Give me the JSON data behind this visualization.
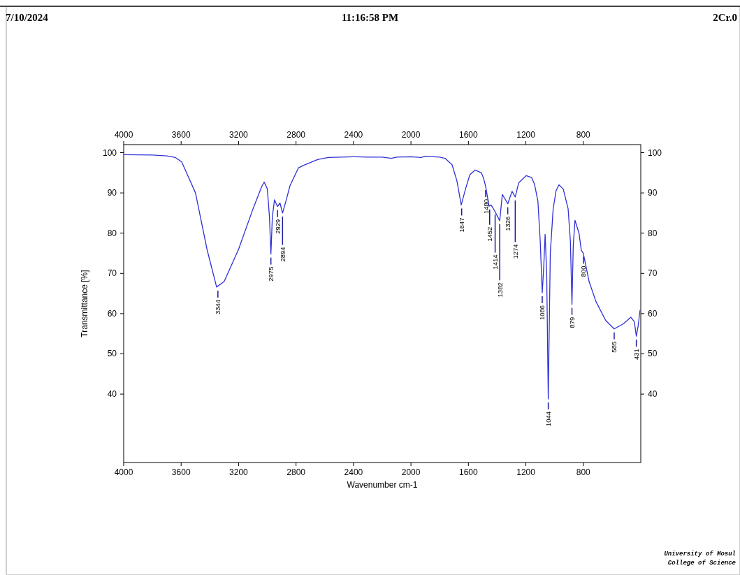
{
  "chart_data": {
    "type": "line",
    "xlabel": "Wavenumber cm-1",
    "ylabel": "Transmittance [%]",
    "xlim": [
      4000,
      400
    ],
    "xticks": [
      4000,
      3600,
      3200,
      2800,
      2400,
      2000,
      1600,
      1200,
      800
    ],
    "x2lim": [
      4000,
      400
    ],
    "x2ticks": [
      4000,
      3600,
      3200,
      2800,
      2400,
      2000,
      1600,
      1200,
      800
    ],
    "ylim": [
      23,
      102
    ],
    "yticks": [
      40,
      50,
      60,
      70,
      80,
      90,
      100
    ],
    "y2lim": [
      23,
      102
    ],
    "y2ticks": [
      40,
      50,
      60,
      70,
      80,
      90,
      100
    ],
    "grid": false,
    "marker": "none",
    "line_style": "solid",
    "series": [
      {
        "color": "#3030d8",
        "x": [
          4000,
          3800,
          3700,
          3640,
          3596,
          3500,
          3420,
          3353,
          3300,
          3200,
          3100,
          3040,
          3022,
          3000,
          2985,
          2975,
          2965,
          2950,
          2929,
          2912,
          2894,
          2870,
          2842,
          2784,
          2750,
          2650,
          2575,
          2400,
          2300,
          2200,
          2137,
          2100,
          2000,
          1928,
          1900,
          1800,
          1763,
          1714,
          1680,
          1650,
          1620,
          1590,
          1553,
          1510,
          1495,
          1480,
          1456,
          1442,
          1417,
          1382,
          1364,
          1345,
          1326,
          1296,
          1274,
          1250,
          1198,
          1160,
          1140,
          1116,
          1100,
          1086,
          1075,
          1066,
          1055,
          1044,
          1030,
          1010,
          990,
          970,
          940,
          906,
          890,
          879,
          870,
          858,
          830,
          814,
          800,
          760,
          712,
          644,
          585,
          520,
          469,
          445,
          431,
          418,
          405
        ],
        "values": [
          99.5,
          99.4,
          99.2,
          98.8,
          97.7,
          90,
          76,
          66.6,
          68,
          76,
          86,
          91.5,
          92.7,
          91,
          84,
          74.8,
          84,
          88.3,
          86.6,
          87.5,
          85,
          88,
          91.8,
          96.2,
          96.8,
          98.3,
          98.8,
          99,
          98.9,
          98.9,
          98.6,
          98.9,
          99,
          98.8,
          99.1,
          98.9,
          98.6,
          97,
          93,
          87,
          91,
          94.5,
          95.7,
          95,
          93.7,
          91.6,
          86.7,
          87,
          85.5,
          83.1,
          89.6,
          88.5,
          87.3,
          90.4,
          89,
          92.5,
          94.3,
          93.8,
          92.2,
          87.9,
          78,
          65.2,
          72,
          79.7,
          70,
          38.8,
          75,
          86,
          90.5,
          92,
          91,
          86.1,
          78,
          62.3,
          77,
          83.2,
          80,
          75.7,
          75,
          68,
          63,
          58.3,
          56.2,
          57.5,
          59.1,
          58,
          54.4,
          57,
          60.9
        ]
      }
    ],
    "annotations": [
      "7/10/2024",
      "11:16:58 PM",
      "2Cr.0",
      "University of Mosul",
      "College of Science",
      {
        "text": "3344",
        "x": 3344,
        "y": 66.6
      },
      {
        "text": "2975",
        "x": 2975,
        "y": 74.8
      },
      {
        "text": "2929",
        "x": 2929,
        "y": 86.6
      },
      {
        "text": "2894",
        "x": 2894,
        "y": 85
      },
      {
        "text": "1647",
        "x": 1647,
        "y": 87
      },
      {
        "text": "1480",
        "x": 1480,
        "y": 91.6
      },
      {
        "text": "1452",
        "x": 1452,
        "y": 86.7
      },
      {
        "text": "1414",
        "x": 1414,
        "y": 85.5
      },
      {
        "text": "1382",
        "x": 1382,
        "y": 83.1
      },
      {
        "text": "1326",
        "x": 1326,
        "y": 87.3
      },
      {
        "text": "1274",
        "x": 1274,
        "y": 89
      },
      {
        "text": "1086",
        "x": 1086,
        "y": 65.2
      },
      {
        "text": "1044",
        "x": 1044,
        "y": 38.8
      },
      {
        "text": "879",
        "x": 879,
        "y": 62.3
      },
      {
        "text": "800",
        "x": 800,
        "y": 75
      },
      {
        "text": "585",
        "x": 585,
        "y": 56.2
      },
      {
        "text": "431",
        "x": 431,
        "y": 54.4
      }
    ]
  }
}
